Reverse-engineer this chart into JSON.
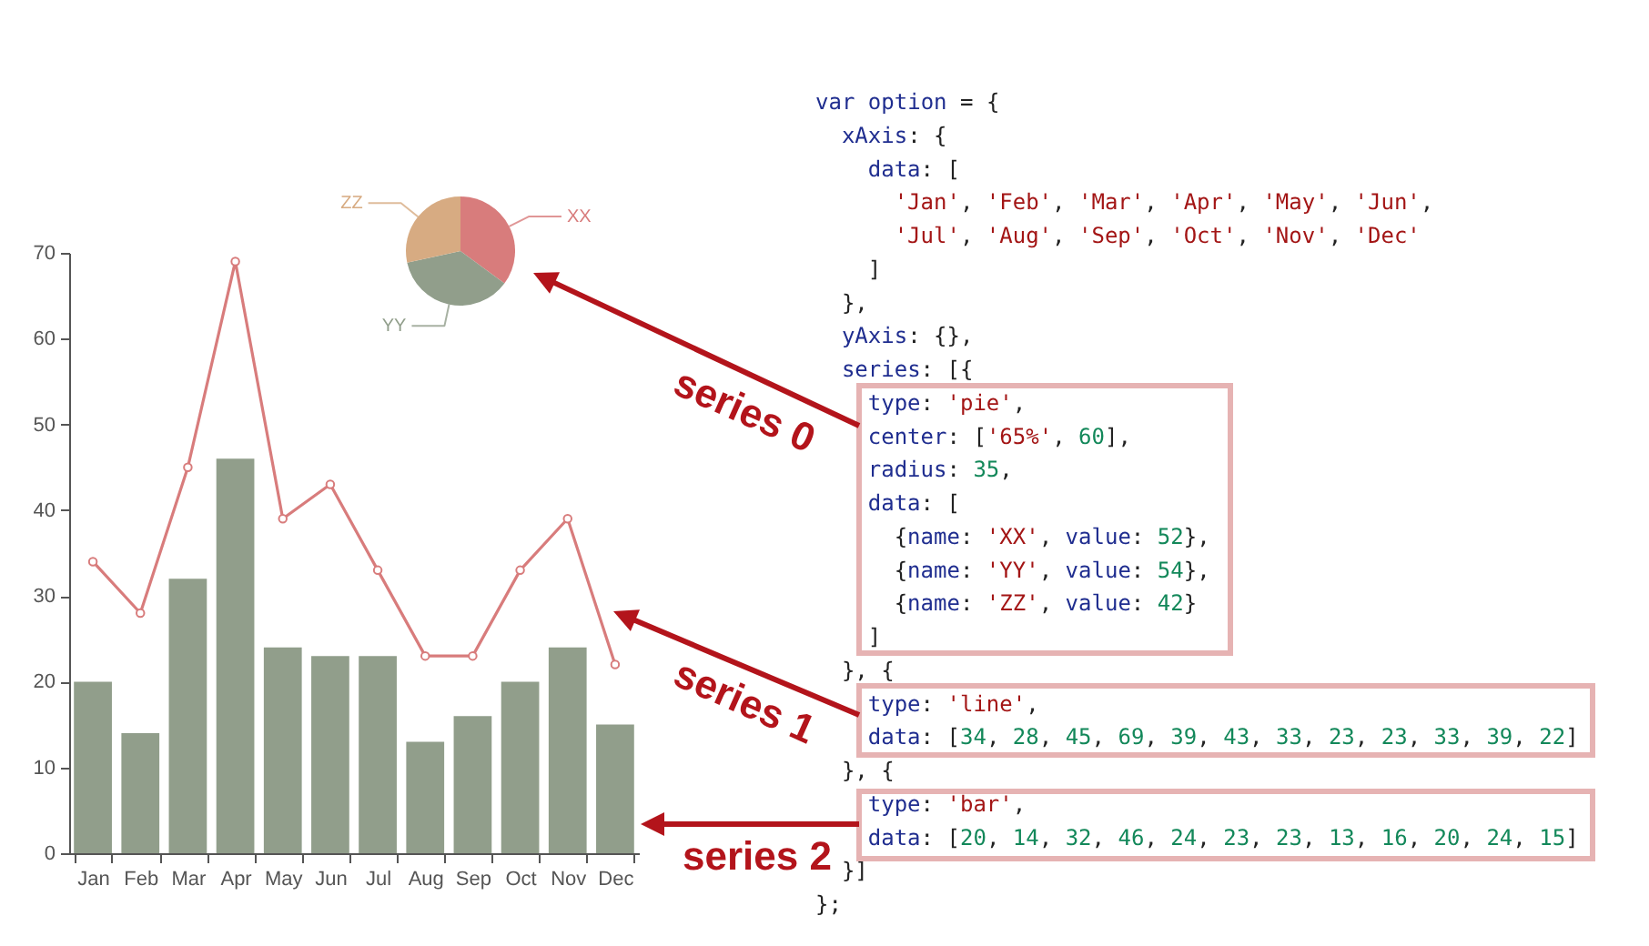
{
  "chart_data": [
    {
      "type": "bar",
      "categories": [
        "Jan",
        "Feb",
        "Mar",
        "Apr",
        "May",
        "Jun",
        "Jul",
        "Aug",
        "Sep",
        "Oct",
        "Nov",
        "Dec"
      ],
      "series": [
        {
          "type": "line",
          "color": "#d87c7c",
          "values": [
            34,
            28,
            45,
            69,
            39,
            43,
            33,
            23,
            23,
            33,
            39,
            22
          ]
        },
        {
          "type": "bar",
          "color": "#919e8b",
          "values": [
            20,
            14,
            32,
            46,
            24,
            23,
            23,
            13,
            16,
            20,
            24,
            15
          ]
        }
      ],
      "ylim": [
        0,
        70
      ],
      "yticks": [
        0,
        10,
        20,
        30,
        40,
        50,
        60,
        70
      ],
      "marker": "circle"
    },
    {
      "type": "pie",
      "categories": [
        "XX",
        "YY",
        "ZZ"
      ],
      "values": [
        35.1,
        36.5,
        28.4
      ],
      "colors": [
        "#d87c7c",
        "#919e8b",
        "#d7ab82"
      ]
    },
    {
      "type": "other",
      "annotations": [
        "var option = {",
        "  xAxis: {",
        "    data: [",
        "      'Jan', 'Feb', 'Mar', 'Apr', 'May', 'Jun',",
        "      'Jul', 'Aug', 'Sep', 'Oct', 'Nov', 'Dec'",
        "    ]",
        "  },",
        "  yAxis: {},",
        "  series: [{",
        "    type: 'pie',",
        "    center: ['65%', 60],",
        "    radius: 35,",
        "    data: [",
        "      {name: 'XX', value: 52},",
        "      {name: 'YY', value: 54},",
        "      {name: 'ZZ', value: 42}",
        "    ]",
        "  }, {",
        "    type: 'line',",
        "    data: [34, 28, 45, 69, 39, 43, 33, 23, 23, 33, 39, 22]",
        "  }, {",
        "    type: 'bar',",
        "    data: [20, 14, 32, 46, 24, 23, 23, 13, 16, 20, 24, 15]",
        "  }]",
        "};",
        "series 0",
        "series 1",
        "series 2"
      ]
    }
  ]
}
